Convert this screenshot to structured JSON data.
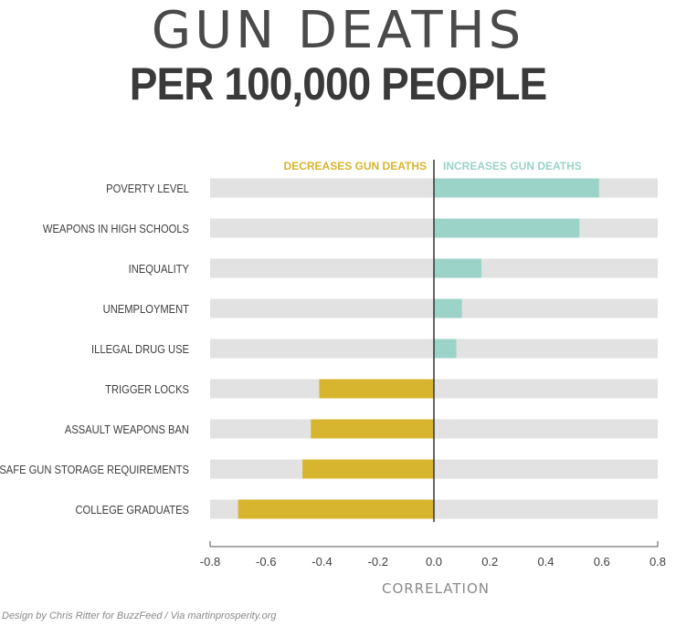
{
  "header": {
    "title_line1": "GUN DEATHS",
    "title_line2": "PER 100,000 PEOPLE"
  },
  "credit": "Design by Chris Ritter for BuzzFeed / Via martinprosperity.org",
  "colors": {
    "negative": "#d8b52f",
    "positive": "#9bd3c9",
    "track": "#e2e2e2",
    "axis": "#555555",
    "text": "#3f3f3f"
  },
  "chart_data": {
    "type": "bar",
    "orientation": "horizontal",
    "legend": {
      "negative_label": "DECREASES GUN DEATHS",
      "positive_label": "INCREASES GUN DEATHS"
    },
    "categories": [
      "POVERTY LEVEL",
      "WEAPONS IN HIGH SCHOOLS",
      "INEQUALITY",
      "UNEMPLOYMENT",
      "ILLEGAL DRUG USE",
      "TRIGGER LOCKS",
      "ASSAULT WEAPONS BAN",
      "SAFE GUN STORAGE REQUIREMENTS",
      "COLLEGE GRADUATES"
    ],
    "values": [
      0.59,
      0.52,
      0.17,
      0.1,
      0.08,
      -0.41,
      -0.44,
      -0.47,
      -0.7
    ],
    "xlabel": "CORRELATION",
    "xlim": [
      -0.8,
      0.8
    ],
    "xticks": [
      "-0.8",
      "-0.6",
      "-0.4",
      "-0.2",
      "0.0",
      "0.2",
      "0.4",
      "0.6",
      "0.8"
    ],
    "grid": false
  }
}
